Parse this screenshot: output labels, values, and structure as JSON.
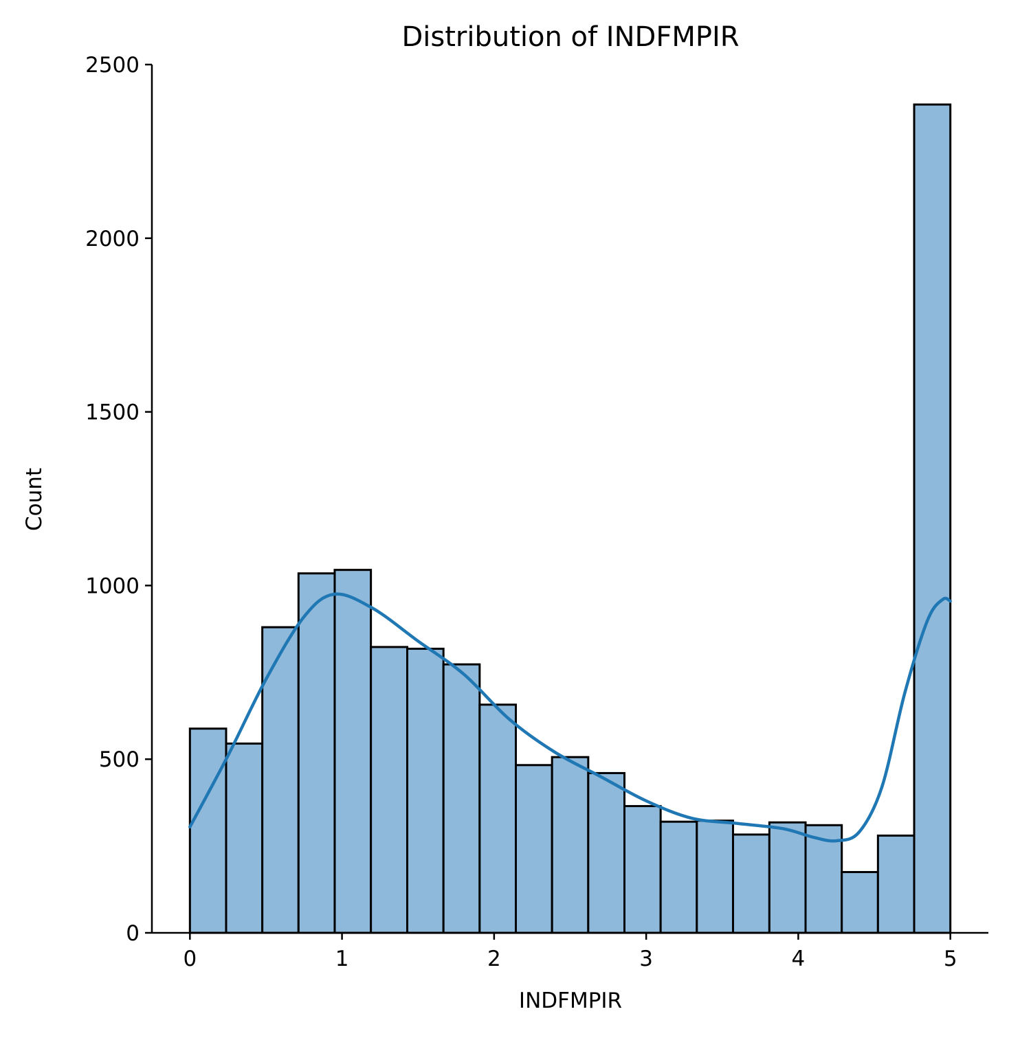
{
  "chart_data": {
    "type": "bar",
    "title": "Distribution of INDFMPIR",
    "xlabel": "INDFMPIR",
    "ylabel": "Count",
    "xlim": [
      -0.25,
      5.25
    ],
    "ylim": [
      0,
      2500
    ],
    "xticks": [
      0,
      1,
      2,
      3,
      4,
      5
    ],
    "yticks": [
      0,
      500,
      1000,
      1500,
      2000,
      2500
    ],
    "bin_edges": [
      0,
      0.238,
      0.476,
      0.714,
      0.952,
      1.19,
      1.429,
      1.667,
      1.905,
      2.143,
      2.381,
      2.619,
      2.857,
      3.095,
      3.333,
      3.571,
      3.81,
      4.048,
      4.286,
      4.524,
      4.762,
      5
    ],
    "values": [
      588,
      545,
      880,
      1035,
      1045,
      823,
      818,
      773,
      657,
      483,
      506,
      460,
      365,
      320,
      323,
      283,
      318,
      310,
      175,
      280,
      2385
    ],
    "bar_color": "#8fb9da",
    "kde": {
      "name": "",
      "color": "#1f77b4",
      "x": [
        0,
        0.25,
        0.5,
        0.75,
        0.95,
        1.2,
        1.5,
        1.8,
        2.1,
        2.4,
        2.7,
        3.0,
        3.3,
        3.6,
        3.9,
        4.1,
        4.25,
        4.4,
        4.55,
        4.7,
        4.85,
        4.95,
        5.0
      ],
      "y": [
        305,
        510,
        730,
        910,
        975,
        935,
        840,
        745,
        615,
        520,
        450,
        380,
        330,
        315,
        300,
        275,
        265,
        290,
        420,
        690,
        900,
        960,
        955
      ]
    },
    "grid": false,
    "legend": "none"
  }
}
